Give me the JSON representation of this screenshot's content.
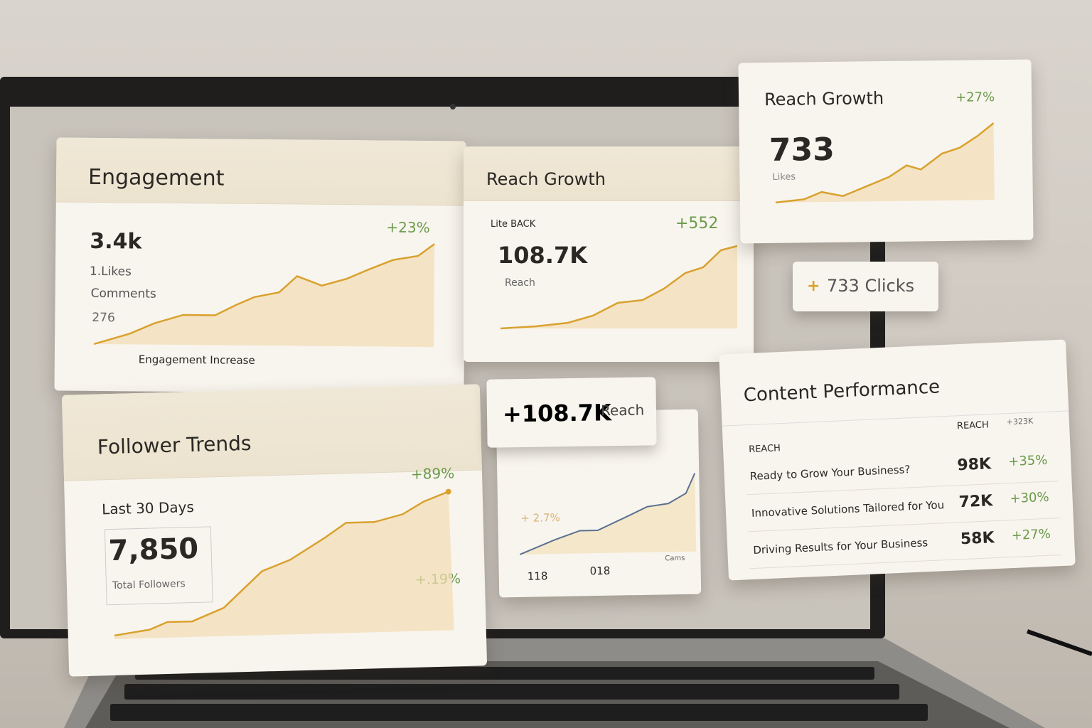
{
  "engagement": {
    "title": "Engagement",
    "change": "+23%",
    "value": "3.4k",
    "stats": [
      "1.Likes",
      "Comments",
      "276"
    ],
    "legend": "Engagement Increase"
  },
  "reach_mid": {
    "title": "Reach Growth",
    "tag": "Lite BACK",
    "change": "+552",
    "value": "108.7K",
    "label": "Reach"
  },
  "reach_top": {
    "title": "Reach Growth",
    "change": "+27%",
    "value": "733",
    "label": "Likes"
  },
  "clicks_pill": {
    "icon": "+",
    "label": "733 Clicks"
  },
  "followers": {
    "title": "Follower Trends",
    "change": "+89%",
    "period": "Last 30 Days",
    "value": "7,850",
    "label": "Total Followers",
    "change2": "+.19%"
  },
  "reach_pill": {
    "value": "+108.7K",
    "label": "Reach"
  },
  "mini": {
    "change": "+ 2.7%",
    "stats": [
      "118",
      "018"
    ],
    "link": "Cams"
  },
  "content": {
    "title": "Content Performance",
    "columns": [
      "REACH",
      "REACH",
      "+323K"
    ],
    "rows": [
      [
        "Ready to Grow Your Business?",
        "98K",
        "+35%"
      ],
      [
        "Innovative Solutions Tailored for You",
        "72K",
        "+30%"
      ],
      [
        "Driving Results for Your Business",
        "58K",
        "+27%"
      ]
    ]
  }
}
